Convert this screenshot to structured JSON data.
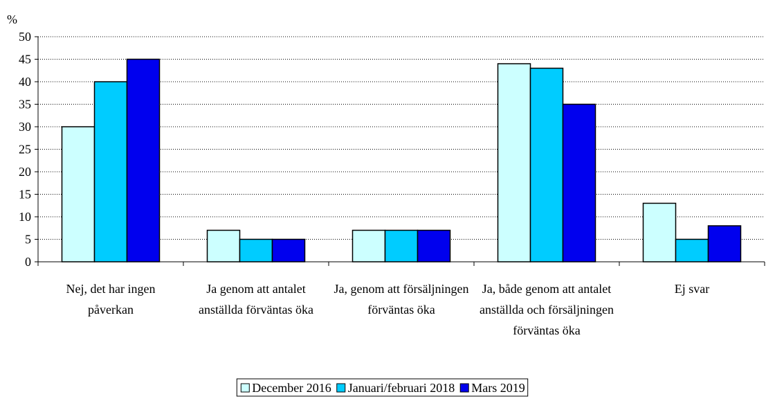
{
  "chart_data": {
    "type": "bar",
    "y_label": "%",
    "categories": [
      "Nej, det har ingen påverkan",
      "Ja genom att antalet anställda förväntas öka",
      "Ja, genom att försäljningen förväntas öka",
      "Ja, både genom att antalet anställda och försäljningen förväntas öka",
      "Ej svar"
    ],
    "series": [
      {
        "name": "December 2016",
        "color": "#ccffff",
        "values": [
          30,
          7,
          7,
          44,
          13
        ]
      },
      {
        "name": "Januari/februari 2018",
        "color": "#00ccff",
        "values": [
          40,
          5,
          7,
          43,
          5
        ]
      },
      {
        "name": "Mars 2019",
        "color": "#0000ee",
        "values": [
          45,
          5,
          7,
          35,
          8
        ]
      }
    ],
    "ylim": [
      0,
      50
    ],
    "yticks": [
      0,
      5,
      10,
      15,
      20,
      25,
      30,
      35,
      40,
      45,
      50
    ],
    "grid": true
  }
}
